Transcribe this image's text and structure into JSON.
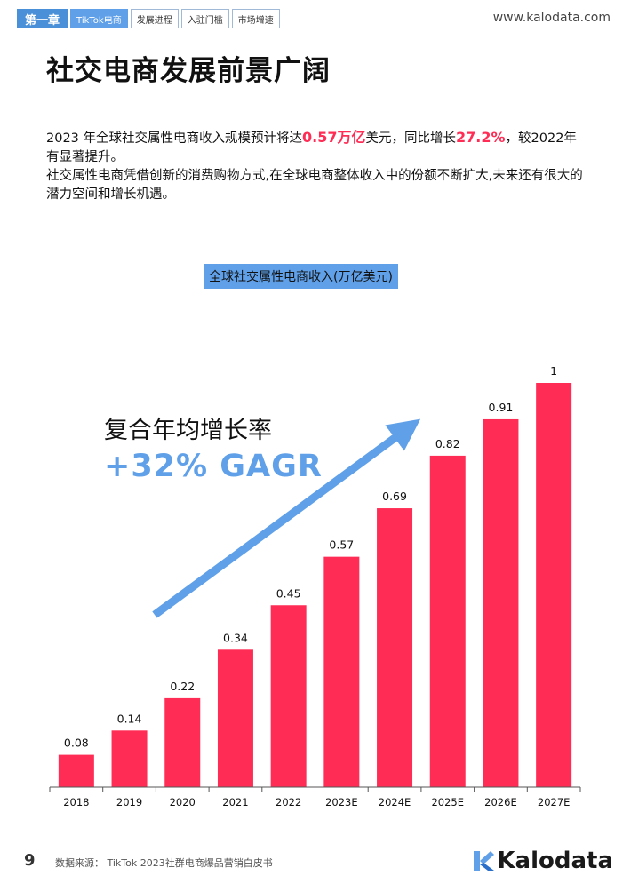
{
  "header": {
    "chapter": "第一章",
    "tabs": [
      "TikTok电商",
      "发展进程",
      "入驻门槛",
      "市场增速"
    ],
    "url": "www.kalodata.com"
  },
  "title": "社交电商发展前景广阔",
  "intro": {
    "p1_a": "2023 年全球社交属性电商收入规模预计将达",
    "p1_hl1": "0.57万亿",
    "p1_b": "美元，同比增长",
    "p1_hl2": "27.2%",
    "p1_c": "，较2022年有显著提升。",
    "p2": "社交属性电商凭借创新的消费购物方式,在全球电商整体收入中的份额不断扩大,未来还有很大的潜力空间和增长机遇。"
  },
  "cagr": {
    "label": "复合年均增长率",
    "value": "+32% GAGR"
  },
  "colors": {
    "accent_blue": "#5fa0e8",
    "bar_red": "#ff2d55",
    "highlight_red": "#ff2d55"
  },
  "chart_data": {
    "type": "bar",
    "title": "全球社交属性电商收入(万亿美元)",
    "categories": [
      "2018",
      "2019",
      "2020",
      "2021",
      "2022",
      "2023E",
      "2024E",
      "2025E",
      "2026E",
      "2027E"
    ],
    "values": [
      0.08,
      0.14,
      0.22,
      0.34,
      0.45,
      0.57,
      0.69,
      0.82,
      0.91,
      1
    ],
    "value_labels": [
      "0.08",
      "0.14",
      "0.22",
      "0.34",
      "0.45",
      "0.57",
      "0.69",
      "0.82",
      "0.91",
      "1"
    ],
    "xlabel": "",
    "ylabel": "",
    "ylim": [
      0,
      1
    ],
    "grid": false,
    "legend": "none"
  },
  "footer": {
    "page_number": "9",
    "source": "数据来源： TikTok 2023社群电商爆品营销白皮书",
    "logo_text": "Kalodata"
  }
}
